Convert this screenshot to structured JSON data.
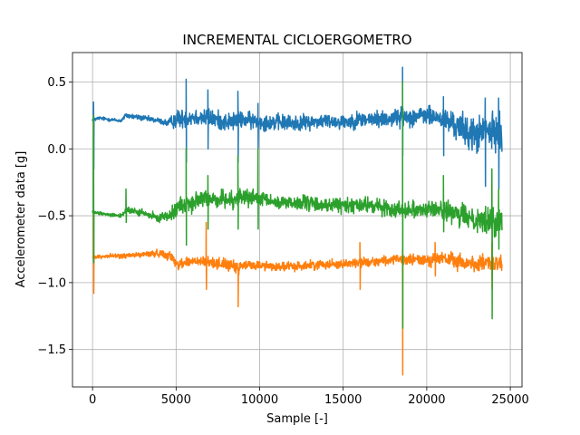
{
  "chart_data": {
    "type": "line",
    "title": "INCREMENTAL CICLOERGOMETRO",
    "xlabel": "Sample [-]",
    "ylabel": "Accelerometer data [g]",
    "xlim": [
      -1200,
      25700
    ],
    "ylim": [
      -1.78,
      0.72
    ],
    "xticks": [
      0,
      5000,
      10000,
      15000,
      20000,
      25000
    ],
    "xtick_labels": [
      "0",
      "5000",
      "10000",
      "15000",
      "20000",
      "25000"
    ],
    "yticks": [
      0.5,
      0.0,
      -0.5,
      -1.0,
      -1.5
    ],
    "ytick_labels": [
      "0.5",
      "0.0",
      "−0.5",
      "−1.0",
      "−1.5"
    ],
    "grid": true,
    "legend": "none",
    "series": [
      {
        "color": "#1f77b4",
        "x": [
          0,
          100,
          400,
          1000,
          1700,
          2000,
          2500,
          3000,
          4000,
          4500,
          5000,
          6000,
          7000,
          8000,
          9000,
          10000,
          11000,
          12000,
          13000,
          14000,
          15000,
          16000,
          17000,
          18000,
          18500,
          19000,
          20000,
          21000,
          22000,
          22500,
          23000,
          23500,
          24000,
          24500
        ],
        "y": [
          0.22,
          0.22,
          0.23,
          0.22,
          0.21,
          0.25,
          0.24,
          0.23,
          0.21,
          0.19,
          0.22,
          0.24,
          0.23,
          0.2,
          0.22,
          0.2,
          0.2,
          0.19,
          0.2,
          0.21,
          0.2,
          0.22,
          0.22,
          0.23,
          0.24,
          0.24,
          0.25,
          0.22,
          0.16,
          0.12,
          0.1,
          0.14,
          0.12,
          0.13
        ],
        "amp": [
          0.02,
          0.02,
          0.02,
          0.02,
          0.02,
          0.03,
          0.03,
          0.03,
          0.03,
          0.04,
          0.1,
          0.1,
          0.1,
          0.1,
          0.09,
          0.09,
          0.09,
          0.09,
          0.08,
          0.08,
          0.08,
          0.09,
          0.09,
          0.1,
          0.1,
          0.1,
          0.1,
          0.12,
          0.16,
          0.18,
          0.2,
          0.18,
          0.19,
          0.2
        ],
        "spikes": [
          [
            60,
            0.35,
            -0.15
          ],
          [
            5600,
            0.52,
            -0.1
          ],
          [
            6900,
            0.44,
            0.0
          ],
          [
            8700,
            0.43,
            -0.1
          ],
          [
            9900,
            0.34,
            0.0
          ],
          [
            18550,
            0.61,
            -0.05
          ],
          [
            21000,
            0.39,
            -0.05
          ],
          [
            23500,
            0.38,
            -0.28
          ],
          [
            24300,
            0.38,
            -0.3
          ]
        ]
      },
      {
        "color": "#ff7f0e",
        "x": [
          0,
          100,
          1000,
          2000,
          3000,
          4000,
          4700,
          5000,
          6000,
          7000,
          8000,
          8700,
          9000,
          10000,
          11000,
          12000,
          13000,
          14000,
          15000,
          16000,
          17000,
          18000,
          19000,
          20000,
          21000,
          22000,
          23000,
          24000,
          24500
        ],
        "y": [
          -0.81,
          -0.81,
          -0.8,
          -0.8,
          -0.79,
          -0.78,
          -0.8,
          -0.86,
          -0.84,
          -0.85,
          -0.86,
          -0.9,
          -0.87,
          -0.87,
          -0.88,
          -0.88,
          -0.87,
          -0.86,
          -0.86,
          -0.85,
          -0.84,
          -0.83,
          -0.83,
          -0.83,
          -0.82,
          -0.85,
          -0.86,
          -0.86,
          -0.86
        ],
        "amp": [
          0.02,
          0.02,
          0.02,
          0.03,
          0.03,
          0.04,
          0.05,
          0.06,
          0.06,
          0.06,
          0.06,
          0.07,
          0.05,
          0.05,
          0.05,
          0.05,
          0.05,
          0.05,
          0.05,
          0.05,
          0.05,
          0.05,
          0.06,
          0.07,
          0.08,
          0.09,
          0.09,
          0.09,
          0.09
        ],
        "spikes": [
          [
            60,
            -0.45,
            -1.08
          ],
          [
            6800,
            -0.55,
            -1.05
          ],
          [
            8700,
            -0.9,
            -1.18
          ],
          [
            16000,
            -0.7,
            -1.05
          ],
          [
            18550,
            -0.75,
            -1.69
          ],
          [
            20500,
            -0.7,
            -0.95
          ],
          [
            23900,
            -0.7,
            -1.05
          ]
        ]
      },
      {
        "color": "#2ca02c",
        "x": [
          0,
          100,
          500,
          1000,
          1700,
          2000,
          3000,
          4000,
          4700,
          5000,
          6000,
          7000,
          8000,
          9000,
          10000,
          11000,
          12000,
          13000,
          14000,
          15000,
          16000,
          17000,
          18000,
          19000,
          20000,
          21000,
          22000,
          23000,
          24000,
          24500
        ],
        "y": [
          -0.47,
          -0.48,
          -0.48,
          -0.49,
          -0.5,
          -0.46,
          -0.48,
          -0.52,
          -0.48,
          -0.44,
          -0.4,
          -0.37,
          -0.38,
          -0.36,
          -0.38,
          -0.4,
          -0.4,
          -0.41,
          -0.42,
          -0.42,
          -0.42,
          -0.43,
          -0.45,
          -0.45,
          -0.45,
          -0.46,
          -0.5,
          -0.52,
          -0.55,
          -0.52
        ],
        "amp": [
          0.02,
          0.02,
          0.02,
          0.02,
          0.03,
          0.04,
          0.04,
          0.04,
          0.07,
          0.1,
          0.1,
          0.1,
          0.09,
          0.09,
          0.09,
          0.08,
          0.08,
          0.08,
          0.08,
          0.08,
          0.08,
          0.08,
          0.09,
          0.09,
          0.09,
          0.1,
          0.12,
          0.14,
          0.16,
          0.16
        ],
        "spikes": [
          [
            60,
            0.25,
            -0.85
          ],
          [
            2000,
            -0.3,
            -0.55
          ],
          [
            5600,
            0.0,
            -0.72
          ],
          [
            6900,
            -0.2,
            -0.6
          ],
          [
            8700,
            -0.05,
            -0.6
          ],
          [
            9900,
            0.0,
            -0.6
          ],
          [
            18550,
            0.5,
            -1.34
          ],
          [
            21000,
            -0.2,
            -0.62
          ],
          [
            23900,
            -0.15,
            -1.27
          ],
          [
            24300,
            -0.3,
            -0.75
          ]
        ]
      }
    ]
  }
}
